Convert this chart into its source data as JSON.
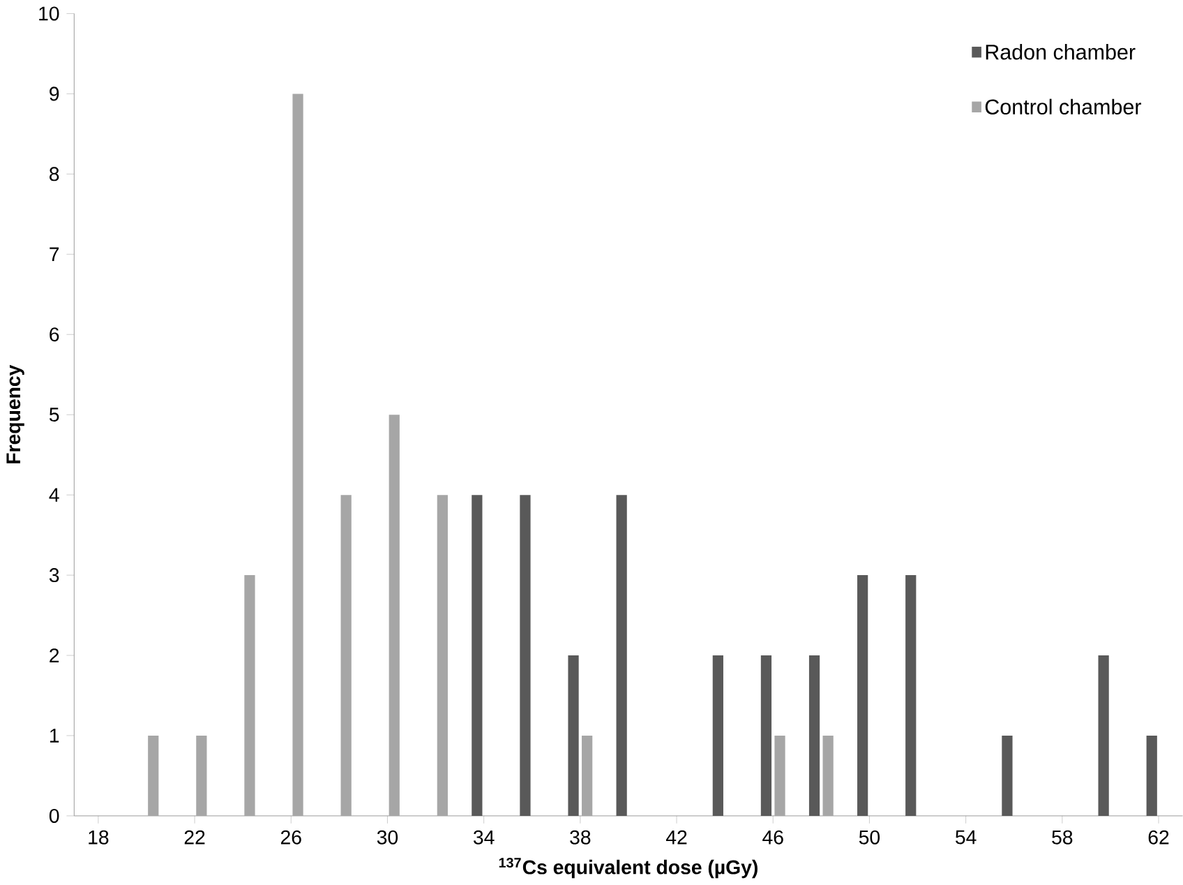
{
  "chart_data": {
    "type": "bar",
    "xlabel": "$^{137}$Cs equivalent dose (µGy)",
    "ylabel": "Frequency",
    "categories": [
      "18",
      null,
      "22",
      null,
      "26",
      null,
      "30",
      null,
      "34",
      null,
      "38",
      null,
      "42",
      null,
      "46",
      null,
      "50",
      null,
      "54",
      null,
      "58",
      null,
      "62"
    ],
    "series": [
      {
        "name": "Radon chamber",
        "color": "#595959",
        "values": [
          0,
          0,
          0,
          0,
          0,
          0,
          0,
          0,
          4,
          4,
          2,
          4,
          0,
          2,
          2,
          2,
          3,
          3,
          0,
          1,
          0,
          2,
          1
        ]
      },
      {
        "name": "Control chamber",
        "color": "#a6a6a6",
        "values": [
          0,
          1,
          1,
          3,
          9,
          4,
          5,
          4,
          0,
          0,
          1,
          0,
          0,
          0,
          1,
          1,
          0,
          0,
          0,
          0,
          0,
          0,
          0
        ]
      }
    ],
    "ylim": [
      0,
      10
    ],
    "yticks": [
      0,
      1,
      2,
      3,
      4,
      5,
      6,
      7,
      8,
      9,
      10
    ],
    "grid": false,
    "legend": "top right"
  }
}
